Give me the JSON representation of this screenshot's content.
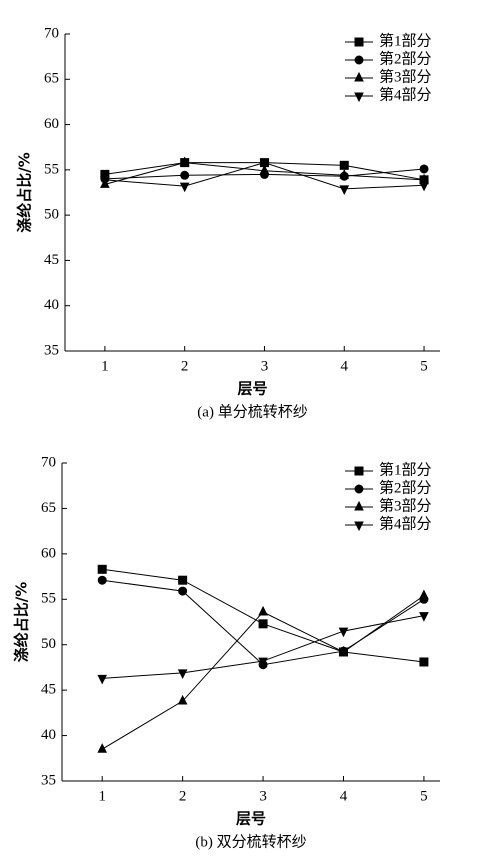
{
  "chart_data": [
    {
      "type": "line",
      "caption": "(a) 单分梳转杯纱",
      "xlabel": "层号",
      "ylabel": "涤纶占比/%",
      "x": [
        1,
        2,
        3,
        4,
        5
      ],
      "xlim": [
        0.5,
        5.2
      ],
      "xticks": [
        1,
        2,
        3,
        4,
        5
      ],
      "ylim": [
        35,
        70
      ],
      "yticks": [
        35,
        40,
        45,
        50,
        55,
        60,
        65,
        70
      ],
      "legend": "upper right",
      "series": [
        {
          "name": "第1部分",
          "color": "#000000",
          "marker": "square",
          "values": [
            54.5,
            55.8,
            55.8,
            55.5,
            53.9
          ]
        },
        {
          "name": "第2部分",
          "color": "#000000",
          "marker": "circle",
          "values": [
            54.0,
            54.4,
            54.5,
            54.3,
            55.1
          ]
        },
        {
          "name": "第3部分",
          "color": "#000000",
          "marker": "triangle-up",
          "values": [
            53.4,
            55.8,
            54.9,
            54.4,
            53.9
          ]
        },
        {
          "name": "第4部分",
          "color": "#000000",
          "marker": "triangle-down",
          "values": [
            53.9,
            53.2,
            55.8,
            52.9,
            53.3
          ]
        }
      ]
    },
    {
      "type": "line",
      "caption": "(b) 双分梳转杯纱",
      "xlabel": "层号",
      "ylabel": "涤纶占比/%",
      "x": [
        1,
        2,
        3,
        4,
        5
      ],
      "xlim": [
        0.5,
        5.2
      ],
      "xticks": [
        1,
        2,
        3,
        4,
        5
      ],
      "ylim": [
        35,
        70
      ],
      "yticks": [
        35,
        40,
        45,
        50,
        55,
        60,
        65,
        70
      ],
      "legend": "upper right",
      "series": [
        {
          "name": "第1部分",
          "color": "#000000",
          "marker": "square",
          "values": [
            58.3,
            57.1,
            52.3,
            49.2,
            48.1
          ]
        },
        {
          "name": "第2部分",
          "color": "#000000",
          "marker": "circle",
          "values": [
            57.1,
            55.9,
            47.8,
            49.3,
            55.0
          ]
        },
        {
          "name": "第3部分",
          "color": "#000000",
          "marker": "triangle-up",
          "values": [
            38.5,
            43.8,
            53.6,
            49.2,
            55.4
          ]
        },
        {
          "name": "第4部分",
          "color": "#000000",
          "marker": "triangle-down",
          "values": [
            46.3,
            46.9,
            48.2,
            51.5,
            53.2
          ]
        }
      ]
    }
  ]
}
